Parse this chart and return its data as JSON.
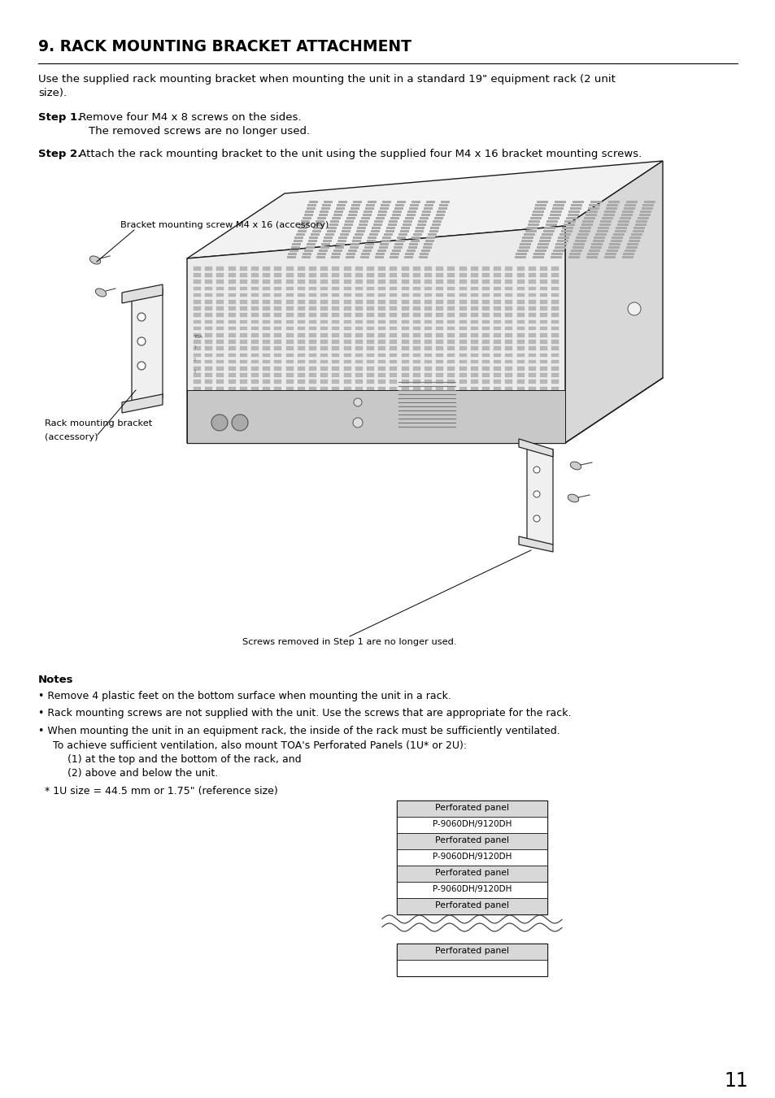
{
  "title": "9. RACK MOUNTING BRACKET ATTACHMENT",
  "intro_line1": "Use the supplied rack mounting bracket when mounting the unit in a standard 19\" equipment rack (2 unit",
  "intro_line2": "size).",
  "step1_bold": "Step 1.",
  "step1_text": " Remove four M4 x 8 screws on the sides.",
  "step1_sub": "The removed screws are no longer used.",
  "step2_bold": "Step 2.",
  "step2_text": " Attach the rack mounting bracket to the unit using the supplied four M4 x 16 bracket mounting screws.",
  "label_bracket_screw": "Bracket mounting screw M4 x 16 (accessory)",
  "label_rack_bracket_1": "Rack mounting bracket",
  "label_rack_bracket_2": "(accessory)",
  "label_screws_removed": "Screws removed in Step 1 are no longer used.",
  "notes_title": "Notes",
  "note1": "Remove 4 plastic feet on the bottom surface when mounting the unit in a rack.",
  "note2": "Rack mounting screws are not supplied with the unit. Use the screws that are appropriate for the rack.",
  "note3a": "When mounting the unit in an equipment rack, the inside of the rack must be sufficiently ventilated.",
  "note3b": "  To achieve sufficient ventilation, also mount TOA's Perforated Panels (1U* or 2U):",
  "note3c": "    (1) at the top and the bottom of the rack, and",
  "note3d": "    (2) above and below the unit.",
  "footnote": "  * 1U size = 44.5 mm or 1.75\" (reference size)",
  "rack_labels": [
    "Perforated panel",
    "P-9060DH/9120DH",
    "Perforated panel",
    "P-9060DH/9120DH",
    "Perforated panel",
    "P-9060DH/9120DH",
    "Perforated panel"
  ],
  "rack_bottom_label": "Perforated panel",
  "page_number": "11",
  "bg_color": "#ffffff",
  "text_color": "#000000"
}
